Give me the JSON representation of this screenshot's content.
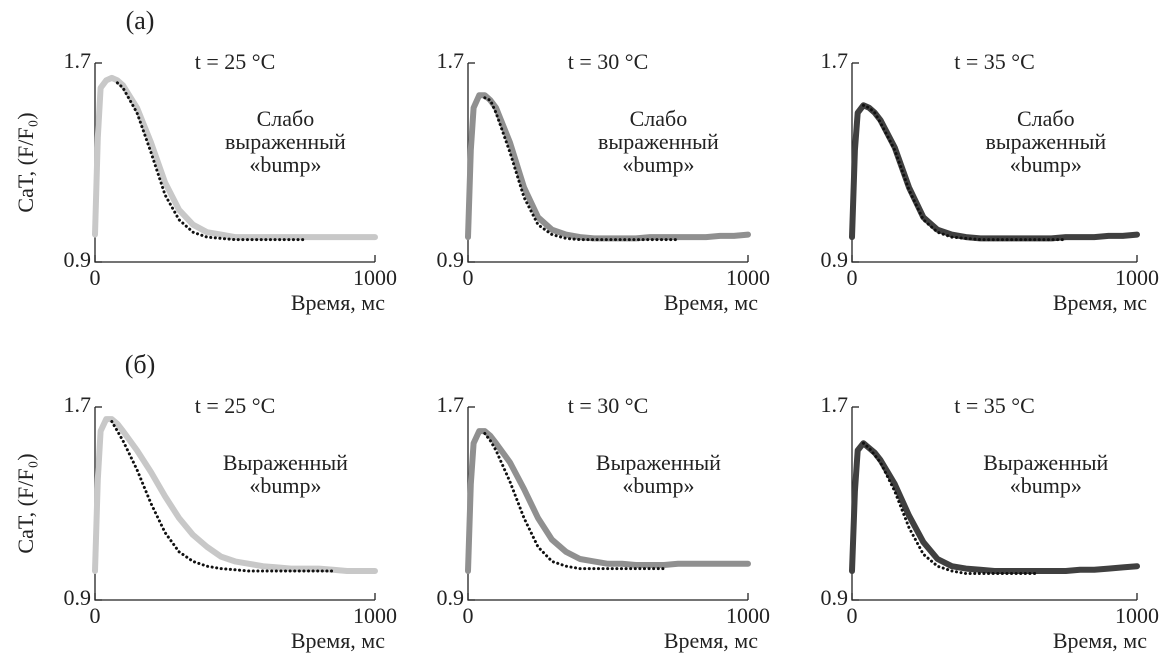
{
  "chart_data": [
    {
      "type": "line",
      "panel_label": "(a)",
      "title": "t = 25 °C",
      "ylabel": "CaT, (F/F₀)",
      "xlabel": "Время, мс",
      "annotations": [
        "Слабо",
        "выраженный",
        "«bump»"
      ],
      "xlim": [
        0,
        1000
      ],
      "xticks": [
        0,
        1000
      ],
      "ylim": [
        0.9,
        1.7
      ],
      "yticks": [
        0.9,
        1.7
      ],
      "x": [
        0,
        10,
        20,
        40,
        60,
        80,
        100,
        150,
        200,
        250,
        300,
        350,
        400,
        450,
        500,
        550,
        600,
        650,
        700,
        750,
        800,
        850,
        900,
        950,
        1000
      ],
      "series": [
        {
          "color": "#c8c8c8",
          "style": "solid",
          "values": [
            1.01,
            1.4,
            1.6,
            1.63,
            1.64,
            1.63,
            1.61,
            1.52,
            1.38,
            1.22,
            1.11,
            1.05,
            1.02,
            1.01,
            1.0,
            1.0,
            1.0,
            1.0,
            1.0,
            1.0,
            1.0,
            1.0,
            1.0,
            1.0,
            1.0
          ]
        },
        {
          "color": "#111111",
          "style": "dotted",
          "values": [
            null,
            null,
            null,
            null,
            null,
            1.62,
            1.6,
            1.5,
            1.34,
            1.17,
            1.07,
            1.02,
            1.0,
            0.995,
            0.99,
            0.99,
            0.99,
            0.99,
            0.99,
            0.99,
            null,
            null,
            null,
            null,
            null
          ]
        }
      ]
    },
    {
      "type": "line",
      "title": "t = 30 °C",
      "xlabel": "Время, мс",
      "annotations": [
        "Слабо",
        "выраженный",
        "«bump»"
      ],
      "xlim": [
        0,
        1000
      ],
      "xticks": [
        0,
        1000
      ],
      "ylim": [
        0.9,
        1.7
      ],
      "yticks": [
        0.9,
        1.7
      ],
      "x": [
        0,
        10,
        20,
        40,
        60,
        80,
        100,
        150,
        200,
        250,
        300,
        350,
        400,
        450,
        500,
        550,
        600,
        650,
        700,
        750,
        800,
        850,
        900,
        950,
        1000
      ],
      "series": [
        {
          "color": "#909090",
          "style": "solid",
          "values": [
            1.0,
            1.35,
            1.52,
            1.57,
            1.57,
            1.55,
            1.52,
            1.38,
            1.2,
            1.08,
            1.03,
            1.01,
            1.0,
            0.995,
            0.995,
            0.995,
            0.995,
            1.0,
            1.0,
            1.0,
            1.0,
            1.0,
            1.005,
            1.005,
            1.01
          ]
        },
        {
          "color": "#111111",
          "style": "dotted",
          "values": [
            null,
            null,
            null,
            null,
            1.56,
            1.55,
            1.5,
            1.34,
            1.16,
            1.05,
            1.01,
            0.995,
            0.99,
            0.99,
            0.99,
            0.99,
            0.99,
            0.99,
            0.99,
            0.99,
            null,
            null,
            null,
            null,
            null
          ]
        }
      ]
    },
    {
      "type": "line",
      "title": "t = 35 °C",
      "xlabel": "Время, мс",
      "annotations": [
        "Слабо",
        "выраженный",
        "«bump»"
      ],
      "xlim": [
        0,
        1000
      ],
      "xticks": [
        0,
        1000
      ],
      "ylim": [
        0.9,
        1.7
      ],
      "yticks": [
        0.9,
        1.7
      ],
      "x": [
        0,
        10,
        20,
        40,
        60,
        80,
        100,
        150,
        200,
        250,
        300,
        350,
        400,
        450,
        500,
        550,
        600,
        650,
        700,
        750,
        800,
        850,
        900,
        950,
        1000
      ],
      "series": [
        {
          "color": "#404040",
          "style": "solid",
          "values": [
            1.0,
            1.35,
            1.5,
            1.53,
            1.52,
            1.5,
            1.47,
            1.36,
            1.2,
            1.08,
            1.03,
            1.01,
            1.0,
            0.995,
            0.995,
            0.995,
            0.995,
            0.995,
            0.995,
            1.0,
            1.0,
            1.0,
            1.005,
            1.005,
            1.01
          ]
        },
        {
          "color": "#111111",
          "style": "dotted",
          "values": [
            null,
            null,
            null,
            1.53,
            1.52,
            1.5,
            1.46,
            1.35,
            1.19,
            1.07,
            1.02,
            1.0,
            0.995,
            0.99,
            0.99,
            0.99,
            0.99,
            0.99,
            0.99,
            0.99,
            null,
            null,
            null,
            null,
            null
          ]
        }
      ]
    },
    {
      "type": "line",
      "panel_label": "(б)",
      "title": "t = 25 °C",
      "ylabel": "CaT, (F/F₀)",
      "xlabel": "Время, мс",
      "annotations": [
        "Выраженный",
        "«bump»"
      ],
      "xlim": [
        0,
        1000
      ],
      "xticks": [
        0,
        1000
      ],
      "ylim": [
        0.9,
        1.7
      ],
      "yticks": [
        0.9,
        1.7
      ],
      "x": [
        0,
        10,
        20,
        40,
        60,
        80,
        100,
        150,
        200,
        250,
        300,
        350,
        400,
        450,
        500,
        550,
        600,
        650,
        700,
        750,
        800,
        850,
        900,
        950,
        1000
      ],
      "series": [
        {
          "color": "#c8c8c8",
          "style": "solid",
          "values": [
            1.02,
            1.4,
            1.6,
            1.65,
            1.65,
            1.63,
            1.6,
            1.52,
            1.43,
            1.33,
            1.24,
            1.17,
            1.12,
            1.08,
            1.06,
            1.05,
            1.04,
            1.035,
            1.03,
            1.03,
            1.03,
            1.025,
            1.02,
            1.02,
            1.02
          ]
        },
        {
          "color": "#111111",
          "style": "dotted",
          "values": [
            null,
            null,
            null,
            null,
            1.64,
            1.6,
            1.56,
            1.44,
            1.3,
            1.18,
            1.1,
            1.06,
            1.04,
            1.03,
            1.025,
            1.02,
            1.02,
            1.02,
            1.02,
            1.02,
            1.02,
            1.02,
            null,
            null,
            null
          ]
        }
      ]
    },
    {
      "type": "line",
      "title": "t = 30 °C",
      "xlabel": "Время, мс",
      "annotations": [
        "Выраженный",
        "«bump»"
      ],
      "xlim": [
        0,
        1000
      ],
      "xticks": [
        0,
        1000
      ],
      "ylim": [
        0.9,
        1.7
      ],
      "yticks": [
        0.9,
        1.7
      ],
      "x": [
        0,
        10,
        20,
        40,
        60,
        80,
        100,
        150,
        200,
        250,
        300,
        350,
        400,
        450,
        500,
        550,
        600,
        650,
        700,
        750,
        800,
        850,
        900,
        950,
        1000
      ],
      "series": [
        {
          "color": "#909090",
          "style": "solid",
          "values": [
            1.02,
            1.38,
            1.55,
            1.6,
            1.6,
            1.58,
            1.55,
            1.47,
            1.36,
            1.24,
            1.15,
            1.1,
            1.07,
            1.06,
            1.05,
            1.05,
            1.045,
            1.045,
            1.045,
            1.05,
            1.05,
            1.05,
            1.05,
            1.05,
            1.05
          ]
        },
        {
          "color": "#111111",
          "style": "dotted",
          "values": [
            null,
            null,
            null,
            null,
            1.59,
            1.56,
            1.52,
            1.39,
            1.24,
            1.12,
            1.06,
            1.04,
            1.03,
            1.03,
            1.03,
            1.03,
            1.03,
            1.03,
            1.03,
            null,
            null,
            null,
            null,
            null,
            null
          ]
        }
      ]
    },
    {
      "type": "line",
      "title": "t = 35 °C",
      "xlabel": "Время, мс",
      "annotations": [
        "Выраженный",
        "«bump»"
      ],
      "xlim": [
        0,
        1000
      ],
      "xticks": [
        0,
        1000
      ],
      "ylim": [
        0.9,
        1.7
      ],
      "yticks": [
        0.9,
        1.7
      ],
      "x": [
        0,
        10,
        20,
        40,
        60,
        80,
        100,
        150,
        200,
        250,
        300,
        350,
        400,
        450,
        500,
        550,
        600,
        650,
        700,
        750,
        800,
        850,
        900,
        950,
        1000
      ],
      "series": [
        {
          "color": "#404040",
          "style": "solid",
          "values": [
            1.02,
            1.35,
            1.52,
            1.55,
            1.53,
            1.51,
            1.48,
            1.38,
            1.25,
            1.14,
            1.07,
            1.04,
            1.03,
            1.025,
            1.02,
            1.02,
            1.02,
            1.02,
            1.02,
            1.02,
            1.025,
            1.025,
            1.03,
            1.035,
            1.04
          ]
        },
        {
          "color": "#111111",
          "style": "dotted",
          "values": [
            null,
            null,
            null,
            1.55,
            1.53,
            1.5,
            1.47,
            1.35,
            1.2,
            1.09,
            1.04,
            1.02,
            1.01,
            1.01,
            1.01,
            1.01,
            1.01,
            1.01,
            null,
            null,
            null,
            null,
            null,
            null,
            null
          ]
        }
      ]
    }
  ]
}
